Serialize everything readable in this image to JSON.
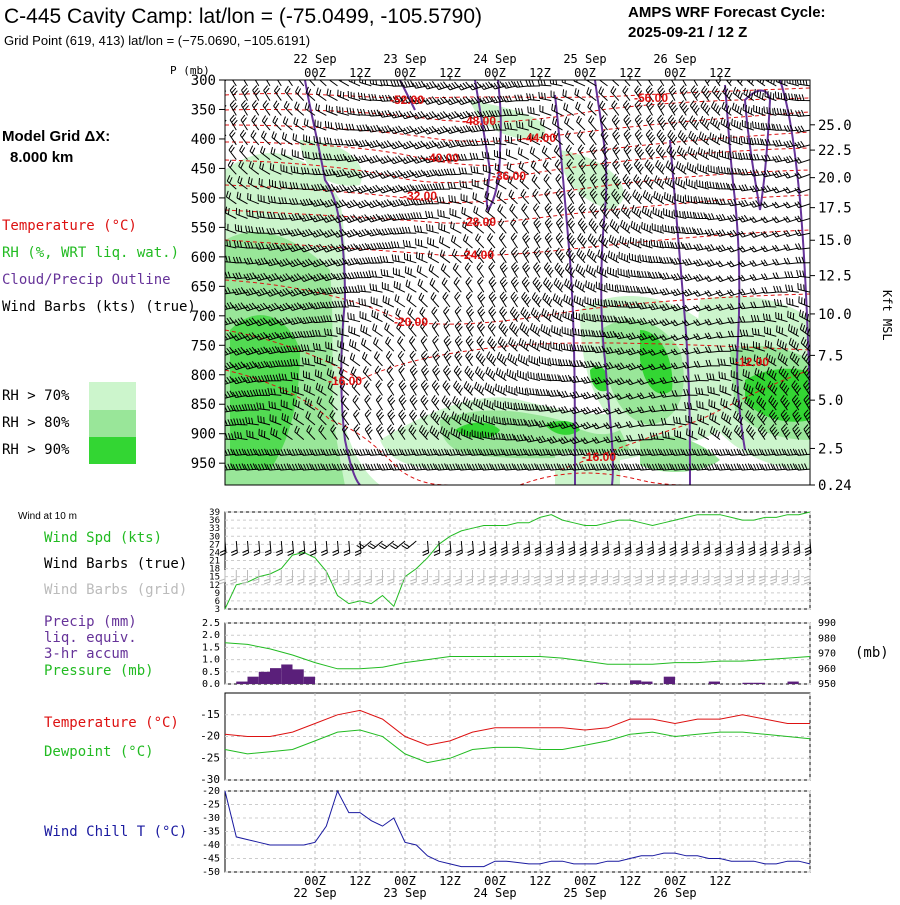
{
  "header": {
    "title": "C-445 Cavity Camp:  lat/lon = (-75.0499, -105.5790)",
    "subtitle": "Grid Point (619, 413) lat/lon = (−75.0690, −105.6191)",
    "cycle_line1": "AMPS WRF Forecast Cycle:",
    "cycle_line2": "2025-09-21 / 12  Z"
  },
  "time_axis": {
    "top_dates": [
      "22 Sep",
      "23 Sep",
      "24 Sep",
      "25 Sep",
      "26 Sep"
    ],
    "hour_labels": [
      "00Z",
      "12Z",
      "00Z",
      "12Z",
      "00Z",
      "12Z",
      "00Z",
      "12Z",
      "00Z",
      "12Z"
    ],
    "bottom_dates": [
      "22 Sep",
      "23 Sep",
      "24 Sep",
      "25 Sep",
      "26 Sep"
    ]
  },
  "cross_section": {
    "p_axis_title": "P (mb)",
    "pressure_ticks": [
      "300",
      "350",
      "400",
      "450",
      "500",
      "550",
      "600",
      "650",
      "700",
      "750",
      "800",
      "850",
      "900",
      "950"
    ],
    "height_ticks": [
      "25.0",
      "22.5",
      "20.0",
      "17.5",
      "15.0",
      "12.5",
      "10.0",
      "7.5",
      "5.0",
      "2.5",
      "0.24"
    ],
    "height_axis_title": "Kft MSL",
    "model_grid_label": "Model Grid ΔX:",
    "model_grid_value": "8.000 km",
    "legend": {
      "temperature": "Temperature (°C)",
      "rh": "RH (%, WRT liq. wat.)",
      "cloud": "Cloud/Precip Outline",
      "wind": "Wind Barbs (kts) (true)"
    },
    "rh_legend": [
      "RH > 70%",
      "RH > 80%",
      "RH > 90%"
    ],
    "contour_labels": [
      "-52.00",
      "-48.00",
      "-44.00",
      "-40.00",
      "-36.00",
      "-32.00",
      "-28.00",
      "-24.00",
      "-20.00",
      "-16.00",
      "-56.00",
      "-12.00",
      "-16.00"
    ]
  },
  "wind_panel": {
    "header": "Wind at 10 m",
    "labels": [
      "Wind Spd (kts)",
      "Wind Barbs (true)",
      "Wind Barbs (grid)"
    ],
    "ticks": [
      "39",
      "36",
      "33",
      "30",
      "27",
      "24",
      "21",
      "18",
      "15",
      "12",
      "9",
      "6",
      "3"
    ]
  },
  "precip_panel": {
    "labels": [
      "Precip (mm)",
      "liq. equiv.",
      "3-hr accum",
      "Pressure (mb)"
    ],
    "left_ticks": [
      "2.5",
      "2.0",
      "1.5",
      "1.0",
      "0.5",
      "0.0"
    ],
    "right_ticks": [
      "990",
      "980",
      "970",
      "960",
      "950"
    ],
    "right_unit": "(mb)"
  },
  "temp_panel": {
    "labels": [
      "Temperature (°C)",
      "Dewpoint (°C)"
    ],
    "ticks": [
      "-15",
      "-20",
      "-25",
      "-30"
    ]
  },
  "chill_panel": {
    "label": "Wind Chill T (°C)",
    "ticks": [
      "-20",
      "-25",
      "-30",
      "-35",
      "-40",
      "-45",
      "-50"
    ]
  },
  "colors": {
    "temperature": "#dd1111",
    "rh_line": "#22bb22",
    "cloud_outline": "#663399",
    "wind_chill": "#1a1aa0",
    "precip_bar": "#5a1f7a",
    "rh70": "#ccf5cc",
    "rh80": "#99e699",
    "rh90": "#33d633"
  },
  "chart_data": [
    {
      "type": "line",
      "title": "Wind Spd (kts)",
      "x_hours": [
        -24,
        -21,
        -18,
        -15,
        -12,
        -9,
        -6,
        -3,
        0,
        3,
        6,
        9,
        12,
        15,
        18,
        21,
        24,
        27,
        30,
        33,
        36,
        39,
        42,
        45,
        48,
        51,
        54,
        57,
        60,
        63,
        66,
        69,
        72,
        75,
        78,
        81,
        84,
        87,
        90,
        93,
        96,
        99,
        102,
        105,
        108,
        111,
        114,
        117,
        120,
        123,
        126,
        129,
        132
      ],
      "values": [
        3,
        12,
        13,
        15,
        16,
        18,
        23,
        24,
        22,
        17,
        8,
        5,
        6,
        5,
        8,
        4,
        15,
        18,
        22,
        27,
        30,
        32,
        33,
        34,
        34,
        34,
        35,
        35,
        37,
        38,
        36,
        35,
        34,
        34,
        35,
        36,
        36,
        35,
        34,
        35,
        36,
        37,
        38,
        38,
        38,
        37,
        36,
        36,
        37,
        37,
        38,
        38,
        39
      ],
      "ylim": [
        3,
        39
      ]
    },
    {
      "type": "line",
      "title": "Pressure (mb)",
      "x_hours": [
        -24,
        -18,
        -12,
        -6,
        0,
        6,
        12,
        18,
        24,
        30,
        36,
        42,
        48,
        54,
        60,
        66,
        72,
        78,
        84,
        90,
        96,
        102,
        108,
        114,
        120,
        126,
        132
      ],
      "values": [
        977,
        976,
        973,
        969,
        964,
        960,
        960,
        961,
        964,
        966,
        968,
        968,
        968,
        968,
        968,
        967,
        965,
        963,
        963,
        963,
        964,
        964,
        965,
        965,
        966,
        967,
        968
      ],
      "ylim": [
        950,
        990
      ]
    },
    {
      "type": "bar",
      "title": "Precip (mm) 3-hr accum",
      "x_hours": [
        -18,
        -15,
        -12,
        -9,
        -6,
        -3,
        0,
        78,
        87,
        90,
        96,
        108,
        117,
        120,
        129
      ],
      "values": [
        0.1,
        0.3,
        0.5,
        0.65,
        0.8,
        0.6,
        0.3,
        0.05,
        0.15,
        0.1,
        0.3,
        0.1,
        0.05,
        0.05,
        0.1
      ],
      "ylim": [
        0,
        2.5
      ]
    },
    {
      "type": "line",
      "title": "Temperature (°C)",
      "x_hours": [
        -24,
        -18,
        -12,
        -6,
        0,
        6,
        12,
        18,
        24,
        30,
        36,
        42,
        48,
        54,
        60,
        66,
        72,
        78,
        84,
        90,
        96,
        102,
        108,
        114,
        120,
        126,
        132
      ],
      "values": [
        -19.5,
        -20,
        -20,
        -19,
        -17,
        -15,
        -14,
        -16,
        -20,
        -22,
        -21,
        -19,
        -18,
        -18,
        -18,
        -18,
        -18.5,
        -18,
        -16,
        -16,
        -17,
        -16,
        -16,
        -15,
        -16,
        -17,
        -17
      ],
      "ylim": [
        -30,
        -10
      ]
    },
    {
      "type": "line",
      "title": "Dewpoint (°C)",
      "x_hours": [
        -24,
        -18,
        -12,
        -6,
        0,
        6,
        12,
        18,
        24,
        30,
        36,
        42,
        48,
        54,
        60,
        66,
        72,
        78,
        84,
        90,
        96,
        102,
        108,
        114,
        120,
        126,
        132
      ],
      "values": [
        -23,
        -24,
        -23.5,
        -23,
        -21,
        -19,
        -18.5,
        -20,
        -24,
        -26,
        -25,
        -23,
        -22.5,
        -22.5,
        -23,
        -23,
        -22,
        -21,
        -19.5,
        -19,
        -20,
        -19.5,
        -19,
        -19,
        -19.5,
        -20,
        -20.5
      ],
      "ylim": [
        -30,
        -10
      ]
    },
    {
      "type": "line",
      "title": "Wind Chill T (°C)",
      "x_hours": [
        -24,
        -21,
        -18,
        -15,
        -12,
        -9,
        -6,
        -3,
        0,
        3,
        6,
        9,
        12,
        15,
        18,
        21,
        24,
        27,
        30,
        33,
        36,
        39,
        42,
        45,
        48,
        51,
        54,
        57,
        60,
        63,
        66,
        69,
        72,
        75,
        78,
        81,
        84,
        87,
        90,
        93,
        96,
        99,
        102,
        105,
        108,
        111,
        114,
        117,
        120,
        123,
        126,
        129,
        132
      ],
      "values": [
        -20,
        -37,
        -38,
        -39,
        -40,
        -40,
        -40,
        -40,
        -39,
        -33,
        -20,
        -28,
        -28,
        -31,
        -33,
        -30,
        -39,
        -40,
        -44,
        -46,
        -47,
        -48,
        -48,
        -48,
        -46,
        -46,
        -46.5,
        -47,
        -47,
        -46,
        -46,
        -47,
        -47,
        -47,
        -46,
        -46,
        -45,
        -44,
        -44,
        -43,
        -43,
        -44,
        -44,
        -45,
        -45,
        -46,
        -46,
        -46,
        -47,
        -47,
        -46,
        -46,
        -47
      ],
      "ylim": [
        -50,
        -20
      ]
    }
  ]
}
